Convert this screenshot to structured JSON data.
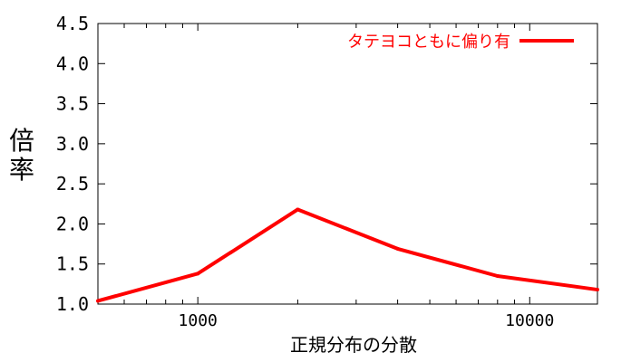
{
  "chart_data": {
    "type": "line",
    "xscale": "log",
    "xlim": [
      500,
      16000
    ],
    "ylim": [
      1.0,
      4.5
    ],
    "xlabel": "正規分布の分散",
    "ylabel": "倍率",
    "grid": false,
    "legend_position": "top-right",
    "x_ticks_labeled": [
      "1000",
      "10000"
    ],
    "y_ticks_labeled": [
      "1.0",
      "1.5",
      "2.0",
      "2.5",
      "3.0",
      "3.5",
      "4.0",
      "4.5"
    ],
    "series": [
      {
        "name": "タテヨコともに偏り有",
        "color": "#ff0000",
        "x": [
          500,
          1000,
          2000,
          4000,
          8000,
          16000
        ],
        "y": [
          1.04,
          1.38,
          2.18,
          1.69,
          1.35,
          1.18
        ]
      }
    ]
  }
}
